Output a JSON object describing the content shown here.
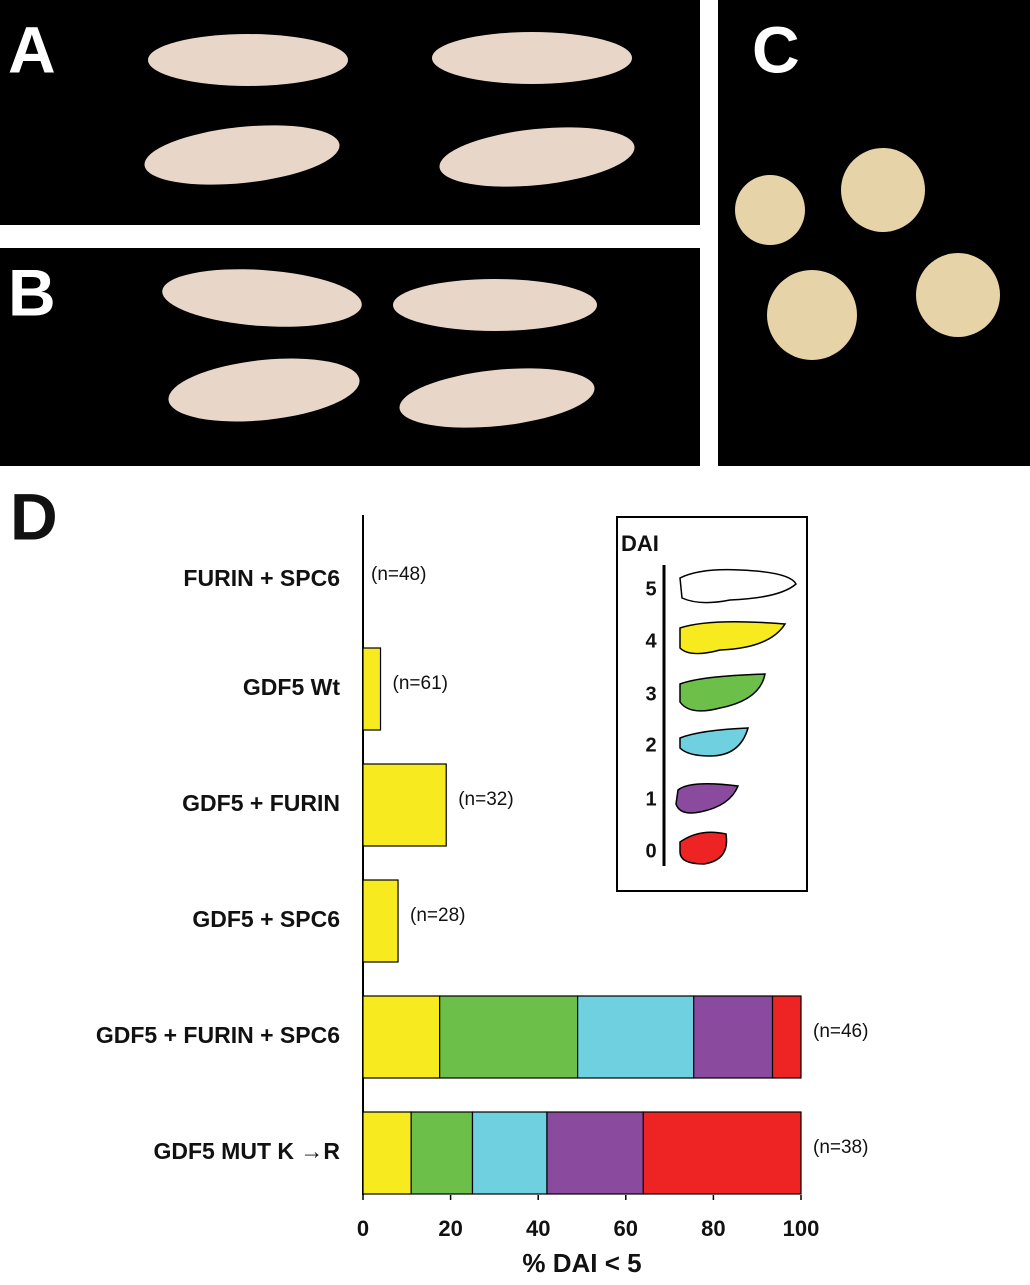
{
  "figure": {
    "panel_labels": [
      "A",
      "B",
      "C",
      "D"
    ]
  },
  "chart_data": {
    "type": "stacked-barh",
    "x_label": "% DAI < 5",
    "categories": [
      "FURIN + SPC6",
      "GDF5 Wt",
      "GDF5 + FURIN",
      "GDF5 + SPC6",
      "GDF5 + FURIN + SPC6",
      "GDF5 MUT K →R"
    ],
    "n_labels": [
      "(n=48)",
      "(n=61)",
      "(n=32)",
      "(n=28)",
      "(n=46)",
      "(n=38)"
    ],
    "series": [
      {
        "name": "4",
        "color": "#f7ea1e",
        "values": [
          0,
          4,
          19,
          8,
          17.5,
          11
        ]
      },
      {
        "name": "3",
        "color": "#6cc04a",
        "values": [
          0,
          0,
          0,
          0,
          31.5,
          14
        ]
      },
      {
        "name": "2",
        "color": "#6fd0e0",
        "values": [
          0,
          0,
          0,
          0,
          26.5,
          17
        ]
      },
      {
        "name": "1",
        "color": "#8a4a9e",
        "values": [
          0,
          0,
          0,
          0,
          18,
          22
        ]
      },
      {
        "name": "0",
        "color": "#ee2424",
        "values": [
          0,
          0,
          0,
          0,
          6.5,
          36
        ]
      }
    ],
    "legend": {
      "title": "DAI",
      "unplotted_entry": "5"
    },
    "xlim": [
      0,
      100
    ],
    "xticks": [
      0,
      20,
      40,
      60,
      80,
      100
    ]
  }
}
